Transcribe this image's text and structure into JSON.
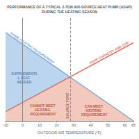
{
  "chart_data": {
    "type": "line",
    "title": "PERFORMANCE OF A TYPICAL 2-TON AIR-SOURCE HEAT PUMP (ASHP)",
    "subtitle": "DURING THE HEATING SEASON",
    "x_label": "OUTDOOR AIR TEMPERATURE (°F)",
    "x": [
      -10,
      65
    ],
    "series": [
      {
        "name": "HOME HEATING REQUIREMENT",
        "color": "#7fa9d6",
        "values": [
          86,
          0
        ]
      },
      {
        "name": "ASHP CAPACITY AND COP",
        "color": "#d9735e",
        "values": [
          9,
          76
        ]
      }
    ],
    "xlim": [
      -10,
      65
    ],
    "xticks": [
      -10,
      0,
      10,
      20,
      30,
      40,
      50,
      60
    ],
    "ylim": [
      0,
      100
    ],
    "tick_labels": "x",
    "grid": false,
    "annotations": [
      {
        "text": "BALANCE POINT",
        "x": 28
      }
    ],
    "regions": [
      "SUPPLEMENTAL HEAT NEEDED",
      "CANNOT MEET HEATING REQUIREMENT",
      "CAN MEET HEATING REQUIREMENT"
    ]
  }
}
